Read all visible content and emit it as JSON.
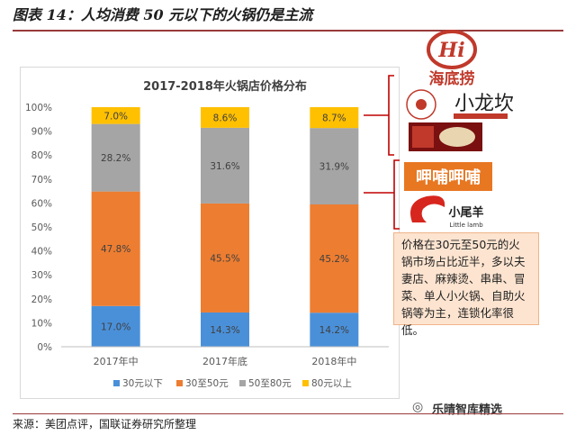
{
  "header": {
    "title": "图表 14：人均消费 50 元以下的火锅仍是主流"
  },
  "footer": {
    "source": "来源：美团点评，国联证券研究所整理"
  },
  "watermark": {
    "text": "乐晴智库精选"
  },
  "annotation": {
    "text": "价格在30元至50元的火锅市场占比近半，多以夫妻店、麻辣烫、串串、冒菜、单人小火锅、自助火锅等为主，连锁化率很低。"
  },
  "brands": {
    "haidilao": {
      "logo_text": "Hi",
      "name": "海底捞"
    },
    "xiaolongkan": {
      "name": "小龙坎"
    },
    "xiabu": {
      "name": "呷哺呷哺"
    },
    "little_lamb": {
      "name": "小尾羊",
      "en": "Little lamb"
    }
  },
  "colors": {
    "accent_red": "#c0392b",
    "bracket_red": "#c00000"
  },
  "chart_data": [
    {
      "type": "bar",
      "stacked": true,
      "title": "2017-2018年火锅店价格分布",
      "categories": [
        "2017年中",
        "2017年底",
        "2018年中"
      ],
      "series": [
        {
          "name": "30元以下",
          "color": "#4A90D9",
          "values": [
            17.0,
            14.3,
            14.2
          ],
          "labels": [
            "17.0%",
            "14.3%",
            "14.2%"
          ]
        },
        {
          "name": "30至50元",
          "color": "#ED7D31",
          "values": [
            47.8,
            45.5,
            45.2
          ],
          "labels": [
            "47.8%",
            "45.5%",
            "45.2%"
          ]
        },
        {
          "name": "50至80元",
          "color": "#A5A5A5",
          "values": [
            28.2,
            31.6,
            31.9
          ],
          "labels": [
            "28.2%",
            "31.6%",
            "31.9%"
          ]
        },
        {
          "name": "80元以上",
          "color": "#FFC000",
          "values": [
            7.0,
            8.6,
            8.7
          ],
          "labels": [
            "7.0%",
            "8.6%",
            "8.7%"
          ]
        }
      ],
      "ylim": [
        0,
        100
      ],
      "yticks": [
        "0%",
        "10%",
        "20%",
        "30%",
        "40%",
        "50%",
        "60%",
        "70%",
        "80%",
        "90%",
        "100%"
      ],
      "grid": false,
      "legend": "bottom"
    }
  ]
}
